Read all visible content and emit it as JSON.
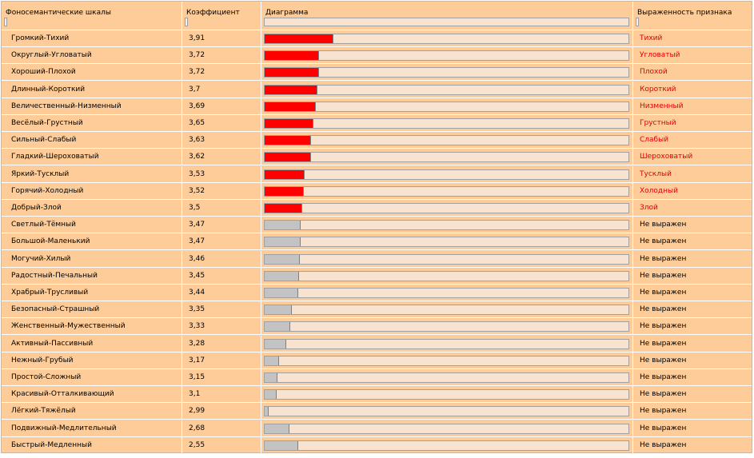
{
  "header": {
    "col1": "Фоносемантические шкалы",
    "col2": "Коэффициент",
    "col3": "Диаграмма",
    "col4": "Выраженность признака"
  },
  "colors": {
    "expressed_bar": "#ff0000",
    "not_expressed_bar": "#c3c3c3",
    "expressed_text": "#e00000",
    "background": "#fecc99"
  },
  "rows": [
    {
      "scale": "Громкий-Тихий",
      "coef": "3,91",
      "bar": 0.19,
      "expressed": true,
      "result": "Тихий"
    },
    {
      "scale": "Округлый-Угловатый",
      "coef": "3,72",
      "bar": 0.15,
      "expressed": true,
      "result": "Угловатый"
    },
    {
      "scale": "Хороший-Плохой",
      "coef": "3,72",
      "bar": 0.15,
      "expressed": true,
      "result": "Плохой"
    },
    {
      "scale": "Длинный-Короткий",
      "coef": "3,7",
      "bar": 0.145,
      "expressed": true,
      "result": "Короткий"
    },
    {
      "scale": "Величественный-Низменный",
      "coef": "3,69",
      "bar": 0.14,
      "expressed": true,
      "result": "Низменный"
    },
    {
      "scale": "Весёлый-Грустный",
      "coef": "3,65",
      "bar": 0.133,
      "expressed": true,
      "result": "Грустный"
    },
    {
      "scale": "Сильный-Слабый",
      "coef": "3,63",
      "bar": 0.128,
      "expressed": true,
      "result": "Слабый"
    },
    {
      "scale": "Гладкий-Шероховатый",
      "coef": "3,62",
      "bar": 0.127,
      "expressed": true,
      "result": "Шероховатый"
    },
    {
      "scale": "Яркий-Тусклый",
      "coef": "3,53",
      "bar": 0.11,
      "expressed": true,
      "result": "Тусклый"
    },
    {
      "scale": "Горячий-Холодный",
      "coef": "3,52",
      "bar": 0.107,
      "expressed": true,
      "result": "Холодный"
    },
    {
      "scale": "Добрый-Злой",
      "coef": "3,5",
      "bar": 0.103,
      "expressed": true,
      "result": "Злой"
    },
    {
      "scale": "Светлый-Тёмный",
      "coef": "3,47",
      "bar": 0.098,
      "expressed": false,
      "result": "Не выражен"
    },
    {
      "scale": "Большой-Маленький",
      "coef": "3,47",
      "bar": 0.098,
      "expressed": false,
      "result": "Не выражен"
    },
    {
      "scale": "Могучий-Хилый",
      "coef": "3,46",
      "bar": 0.096,
      "expressed": false,
      "result": "Не выражен"
    },
    {
      "scale": "Радостный-Печальный",
      "coef": "3,45",
      "bar": 0.094,
      "expressed": false,
      "result": "Не выражен"
    },
    {
      "scale": "Храбрый-Трусливый",
      "coef": "3,44",
      "bar": 0.092,
      "expressed": false,
      "result": "Не выражен"
    },
    {
      "scale": "Безопасный-Страшный",
      "coef": "3,35",
      "bar": 0.075,
      "expressed": false,
      "result": "Не выражен"
    },
    {
      "scale": "Женственный-Мужественный",
      "coef": "3,33",
      "bar": 0.071,
      "expressed": false,
      "result": "Не выражен"
    },
    {
      "scale": "Активный-Пассивный",
      "coef": "3,28",
      "bar": 0.06,
      "expressed": false,
      "result": "Не выражен"
    },
    {
      "scale": "Нежный-Грубый",
      "coef": "3,17",
      "bar": 0.039,
      "expressed": false,
      "result": "Не выражен"
    },
    {
      "scale": "Простой-Сложный",
      "coef": "3,15",
      "bar": 0.035,
      "expressed": false,
      "result": "Не выражен"
    },
    {
      "scale": "Красивый-Отталкивающий",
      "coef": "3,1",
      "bar": 0.034,
      "expressed": false,
      "result": "Не выражен"
    },
    {
      "scale": "Лёгкий-Тяжёлый",
      "coef": "2,99",
      "bar": 0.012,
      "expressed": false,
      "result": "Не выражен"
    },
    {
      "scale": "Подвижный-Медлительный",
      "coef": "2,68",
      "bar": 0.068,
      "expressed": false,
      "result": "Не выражен"
    },
    {
      "scale": "Быстрый-Медленный",
      "coef": "2,55",
      "bar": 0.092,
      "expressed": false,
      "result": "Не выражен"
    }
  ]
}
